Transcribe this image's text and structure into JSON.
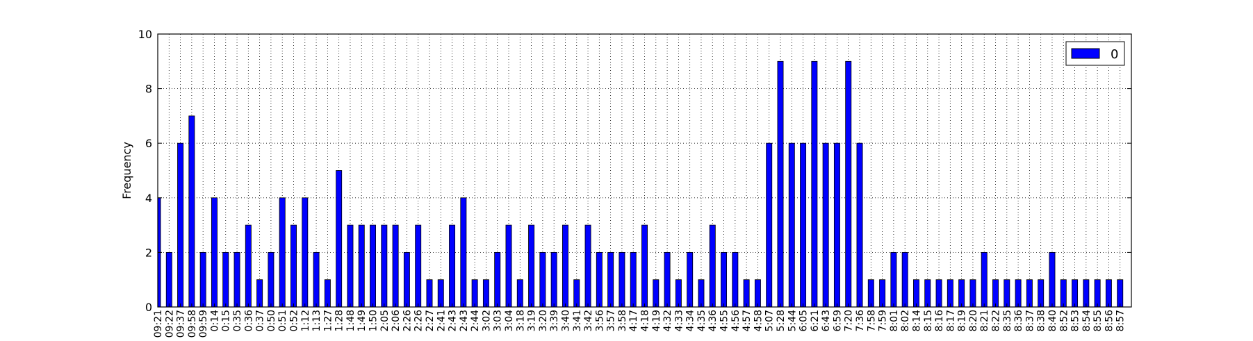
{
  "chart_data": {
    "type": "bar",
    "title": "",
    "xlabel": "",
    "ylabel": "Frequency",
    "ylim": [
      0,
      10
    ],
    "yticks": [
      0,
      2,
      4,
      6,
      8,
      10
    ],
    "grid": true,
    "legend_position": "top-right",
    "series": [
      {
        "name": "0",
        "color": "#0000ff",
        "values": [
          4,
          2,
          6,
          7,
          2,
          4,
          2,
          2,
          3,
          1,
          2,
          4,
          3,
          4,
          2,
          1,
          5,
          3,
          3,
          3,
          3,
          3,
          2,
          3,
          1,
          1,
          3,
          4,
          1,
          1,
          2,
          3,
          1,
          3,
          2,
          2,
          3,
          1,
          3,
          2,
          2,
          2,
          2,
          3,
          1,
          2,
          1,
          2,
          1,
          3,
          2,
          2,
          1,
          1,
          6,
          9,
          6,
          6,
          9,
          6,
          6,
          9,
          6,
          1,
          1,
          2,
          2,
          1,
          1,
          1,
          1,
          1,
          1,
          2,
          1,
          1,
          1,
          1,
          1,
          2,
          1,
          1,
          1,
          1,
          1,
          1
        ]
      }
    ],
    "categories": [
      "09:21",
      "09:22",
      "09:37",
      "09:58",
      "09:59",
      "0:14",
      "0:15",
      "0:35",
      "0:36",
      "0:37",
      "0:50",
      "0:51",
      "0:52",
      "1:12",
      "1:13",
      "1:27",
      "1:28",
      "1:48",
      "1:49",
      "1:50",
      "2:05",
      "2:06",
      "2:26",
      "2:26",
      "2:27",
      "2:41",
      "2:43",
      "2:43",
      "2:44",
      "3:02",
      "3:03",
      "3:04",
      "3:18",
      "3:19",
      "3:20",
      "3:39",
      "3:40",
      "3:41",
      "3:42",
      "3:56",
      "3:57",
      "3:58",
      "4:17",
      "4:18",
      "4:19",
      "4:32",
      "4:33",
      "4:34",
      "4:35",
      "4:36",
      "4:55",
      "4:56",
      "4:57",
      "4:58",
      "5:07",
      "5:28",
      "5:44",
      "6:05",
      "6:21",
      "6:43",
      "6:59",
      "7:20",
      "7:36",
      "7:58",
      "7:59",
      "8:01",
      "8:02",
      "8:14",
      "8:15",
      "8:16",
      "8:17",
      "8:19",
      "8:20",
      "8:21",
      "8:22",
      "8:35",
      "8:36",
      "8:37",
      "8:38",
      "8:40",
      "8:52",
      "8:53",
      "8:54",
      "8:55",
      "8:56",
      "8:57"
    ]
  }
}
